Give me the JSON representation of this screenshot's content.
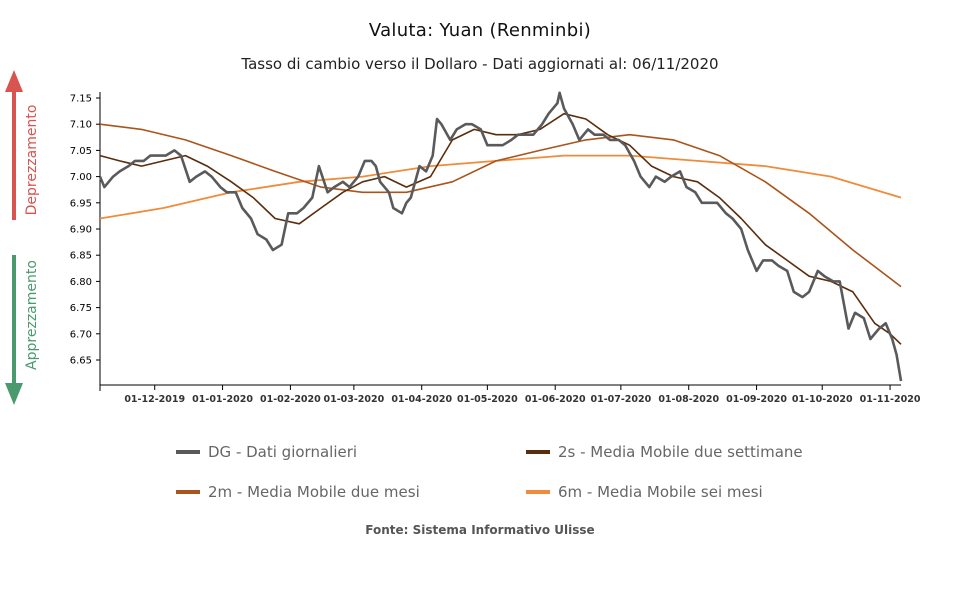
{
  "chart_data": {
    "type": "line",
    "title": "Valuta: Yuan (Renminbi)",
    "subtitle": "Tasso di cambio verso il Dollaro - Dati aggiornati al: 06/11/2020",
    "source": "Fonte: Sistema Informativo Ulisse",
    "side_labels": {
      "top": "Deprezzamento",
      "bottom": "Apprezzamento"
    },
    "side_colors": {
      "top": "#d9534f",
      "bottom": "#4a9a6e"
    },
    "x_range": [
      "2019-11-06",
      "2020-11-06"
    ],
    "x_ticks": [
      {
        "date": "2019-12-01",
        "label": "01-12-2019"
      },
      {
        "date": "2020-01-01",
        "label": "01-01-2020"
      },
      {
        "date": "2020-02-01",
        "label": "01-02-2020"
      },
      {
        "date": "2020-03-01",
        "label": "01-03-2020"
      },
      {
        "date": "2020-04-01",
        "label": "01-04-2020"
      },
      {
        "date": "2020-05-01",
        "label": "01-05-2020"
      },
      {
        "date": "2020-06-01",
        "label": "01-06-2020"
      },
      {
        "date": "2020-07-01",
        "label": "01-07-2020"
      },
      {
        "date": "2020-08-01",
        "label": "01-08-2020"
      },
      {
        "date": "2020-09-01",
        "label": "01-09-2020"
      },
      {
        "date": "2020-10-01",
        "label": "01-10-2020"
      },
      {
        "date": "2020-11-01",
        "label": "01-11-2020"
      }
    ],
    "ylim": [
      6.6,
      7.17
    ],
    "y_ticks": [
      {
        "value": 7.15,
        "label": "7.15"
      },
      {
        "value": 7.1,
        "label": "7.10"
      },
      {
        "value": 7.05,
        "label": "7.05"
      },
      {
        "value": 7.0,
        "label": "7.00"
      },
      {
        "value": 6.95,
        "label": "6.95"
      },
      {
        "value": 6.9,
        "label": "6.90"
      },
      {
        "value": 6.85,
        "label": "6.85"
      },
      {
        "value": 6.8,
        "label": "6.80"
      },
      {
        "value": 6.75,
        "label": "6.75"
      },
      {
        "value": 6.7,
        "label": "6.70"
      },
      {
        "value": 6.65,
        "label": "6.65"
      }
    ],
    "grid": false,
    "legend_position": "bottom",
    "series": [
      {
        "name": "DG - Dati giornalieri",
        "color": "#5a5a5a",
        "points": [
          [
            "2019-11-06",
            7.0
          ],
          [
            "2019-11-08",
            6.98
          ],
          [
            "2019-11-12",
            7.0
          ],
          [
            "2019-11-15",
            7.01
          ],
          [
            "2019-11-19",
            7.02
          ],
          [
            "2019-11-22",
            7.03
          ],
          [
            "2019-11-26",
            7.03
          ],
          [
            "2019-11-29",
            7.04
          ],
          [
            "2019-12-03",
            7.04
          ],
          [
            "2019-12-06",
            7.04
          ],
          [
            "2019-12-10",
            7.05
          ],
          [
            "2019-12-13",
            7.04
          ],
          [
            "2019-12-17",
            6.99
          ],
          [
            "2019-12-20",
            7.0
          ],
          [
            "2019-12-24",
            7.01
          ],
          [
            "2019-12-27",
            7.0
          ],
          [
            "2019-12-31",
            6.98
          ],
          [
            "2020-01-03",
            6.97
          ],
          [
            "2020-01-07",
            6.97
          ],
          [
            "2020-01-10",
            6.94
          ],
          [
            "2020-01-14",
            6.92
          ],
          [
            "2020-01-17",
            6.89
          ],
          [
            "2020-01-21",
            6.88
          ],
          [
            "2020-01-24",
            6.86
          ],
          [
            "2020-01-28",
            6.87
          ],
          [
            "2020-01-31",
            6.93
          ],
          [
            "2020-02-04",
            6.93
          ],
          [
            "2020-02-07",
            6.94
          ],
          [
            "2020-02-11",
            6.96
          ],
          [
            "2020-02-14",
            7.02
          ],
          [
            "2020-02-18",
            6.97
          ],
          [
            "2020-02-21",
            6.98
          ],
          [
            "2020-02-25",
            6.99
          ],
          [
            "2020-02-28",
            6.98
          ],
          [
            "2020-03-03",
            7.0
          ],
          [
            "2020-03-06",
            7.03
          ],
          [
            "2020-03-09",
            7.03
          ],
          [
            "2020-03-11",
            7.02
          ],
          [
            "2020-03-13",
            6.99
          ],
          [
            "2020-03-17",
            6.97
          ],
          [
            "2020-03-19",
            6.94
          ],
          [
            "2020-03-23",
            6.93
          ],
          [
            "2020-03-25",
            6.95
          ],
          [
            "2020-03-27",
            6.96
          ],
          [
            "2020-03-31",
            7.02
          ],
          [
            "2020-04-03",
            7.01
          ],
          [
            "2020-04-06",
            7.04
          ],
          [
            "2020-04-08",
            7.11
          ],
          [
            "2020-04-10",
            7.1
          ],
          [
            "2020-04-14",
            7.07
          ],
          [
            "2020-04-17",
            7.09
          ],
          [
            "2020-04-21",
            7.1
          ],
          [
            "2020-04-24",
            7.1
          ],
          [
            "2020-04-28",
            7.09
          ],
          [
            "2020-05-01",
            7.06
          ],
          [
            "2020-05-05",
            7.06
          ],
          [
            "2020-05-08",
            7.06
          ],
          [
            "2020-05-12",
            7.07
          ],
          [
            "2020-05-15",
            7.08
          ],
          [
            "2020-05-19",
            7.08
          ],
          [
            "2020-05-22",
            7.08
          ],
          [
            "2020-05-26",
            7.1
          ],
          [
            "2020-05-29",
            7.12
          ],
          [
            "2020-06-02",
            7.14
          ],
          [
            "2020-06-03",
            7.16
          ],
          [
            "2020-06-05",
            7.13
          ],
          [
            "2020-06-09",
            7.1
          ],
          [
            "2020-06-12",
            7.07
          ],
          [
            "2020-06-16",
            7.09
          ],
          [
            "2020-06-19",
            7.08
          ],
          [
            "2020-06-23",
            7.08
          ],
          [
            "2020-06-26",
            7.07
          ],
          [
            "2020-06-30",
            7.07
          ],
          [
            "2020-07-03",
            7.06
          ],
          [
            "2020-07-07",
            7.03
          ],
          [
            "2020-07-10",
            7.0
          ],
          [
            "2020-07-14",
            6.98
          ],
          [
            "2020-07-17",
            7.0
          ],
          [
            "2020-07-21",
            6.99
          ],
          [
            "2020-07-24",
            7.0
          ],
          [
            "2020-07-28",
            7.01
          ],
          [
            "2020-07-31",
            6.98
          ],
          [
            "2020-08-04",
            6.97
          ],
          [
            "2020-08-07",
            6.95
          ],
          [
            "2020-08-11",
            6.95
          ],
          [
            "2020-08-14",
            6.95
          ],
          [
            "2020-08-18",
            6.93
          ],
          [
            "2020-08-21",
            6.92
          ],
          [
            "2020-08-25",
            6.9
          ],
          [
            "2020-08-28",
            6.86
          ],
          [
            "2020-09-01",
            6.82
          ],
          [
            "2020-09-04",
            6.84
          ],
          [
            "2020-09-08",
            6.84
          ],
          [
            "2020-09-11",
            6.83
          ],
          [
            "2020-09-15",
            6.82
          ],
          [
            "2020-09-18",
            6.78
          ],
          [
            "2020-09-22",
            6.77
          ],
          [
            "2020-09-25",
            6.78
          ],
          [
            "2020-09-29",
            6.82
          ],
          [
            "2020-10-02",
            6.81
          ],
          [
            "2020-10-06",
            6.8
          ],
          [
            "2020-10-09",
            6.8
          ],
          [
            "2020-10-13",
            6.71
          ],
          [
            "2020-10-16",
            6.74
          ],
          [
            "2020-10-20",
            6.73
          ],
          [
            "2020-10-23",
            6.69
          ],
          [
            "2020-10-27",
            6.71
          ],
          [
            "2020-10-30",
            6.72
          ],
          [
            "2020-11-02",
            6.69
          ],
          [
            "2020-11-04",
            6.66
          ],
          [
            "2020-11-06",
            6.61
          ]
        ]
      },
      {
        "name": "2s - Media Mobile due settimane",
        "color": "#5a2d0c",
        "points": [
          [
            "2019-11-06",
            7.04
          ],
          [
            "2019-11-15",
            7.03
          ],
          [
            "2019-11-25",
            7.02
          ],
          [
            "2019-12-05",
            7.03
          ],
          [
            "2019-12-15",
            7.04
          ],
          [
            "2019-12-25",
            7.02
          ],
          [
            "2020-01-05",
            6.99
          ],
          [
            "2020-01-15",
            6.96
          ],
          [
            "2020-01-25",
            6.92
          ],
          [
            "2020-02-05",
            6.91
          ],
          [
            "2020-02-15",
            6.94
          ],
          [
            "2020-02-25",
            6.97
          ],
          [
            "2020-03-05",
            6.99
          ],
          [
            "2020-03-15",
            7.0
          ],
          [
            "2020-03-25",
            6.98
          ],
          [
            "2020-04-05",
            7.0
          ],
          [
            "2020-04-15",
            7.07
          ],
          [
            "2020-04-25",
            7.09
          ],
          [
            "2020-05-05",
            7.08
          ],
          [
            "2020-05-15",
            7.08
          ],
          [
            "2020-05-25",
            7.09
          ],
          [
            "2020-06-05",
            7.12
          ],
          [
            "2020-06-15",
            7.11
          ],
          [
            "2020-06-25",
            7.08
          ],
          [
            "2020-07-05",
            7.06
          ],
          [
            "2020-07-15",
            7.02
          ],
          [
            "2020-07-25",
            7.0
          ],
          [
            "2020-08-05",
            6.99
          ],
          [
            "2020-08-15",
            6.96
          ],
          [
            "2020-08-25",
            6.92
          ],
          [
            "2020-09-05",
            6.87
          ],
          [
            "2020-09-15",
            6.84
          ],
          [
            "2020-09-25",
            6.81
          ],
          [
            "2020-10-05",
            6.8
          ],
          [
            "2020-10-15",
            6.78
          ],
          [
            "2020-10-25",
            6.72
          ],
          [
            "2020-11-01",
            6.7
          ],
          [
            "2020-11-06",
            6.68
          ]
        ]
      },
      {
        "name": "2m - Media Mobile due mesi",
        "color": "#a9541b",
        "points": [
          [
            "2019-11-06",
            7.1
          ],
          [
            "2019-11-25",
            7.09
          ],
          [
            "2019-12-15",
            7.07
          ],
          [
            "2020-01-05",
            7.04
          ],
          [
            "2020-01-25",
            7.01
          ],
          [
            "2020-02-15",
            6.98
          ],
          [
            "2020-03-05",
            6.97
          ],
          [
            "2020-03-25",
            6.97
          ],
          [
            "2020-04-15",
            6.99
          ],
          [
            "2020-05-05",
            7.03
          ],
          [
            "2020-05-25",
            7.05
          ],
          [
            "2020-06-15",
            7.07
          ],
          [
            "2020-07-05",
            7.08
          ],
          [
            "2020-07-25",
            7.07
          ],
          [
            "2020-08-15",
            7.04
          ],
          [
            "2020-09-05",
            6.99
          ],
          [
            "2020-09-25",
            6.93
          ],
          [
            "2020-10-15",
            6.86
          ],
          [
            "2020-11-06",
            6.79
          ]
        ]
      },
      {
        "name": "6m - Media Mobile sei mesi",
        "color": "#f08b3a",
        "points": [
          [
            "2019-11-06",
            6.92
          ],
          [
            "2019-12-05",
            6.94
          ],
          [
            "2020-01-05",
            6.97
          ],
          [
            "2020-02-05",
            6.99
          ],
          [
            "2020-03-05",
            7.0
          ],
          [
            "2020-04-05",
            7.02
          ],
          [
            "2020-05-05",
            7.03
          ],
          [
            "2020-06-05",
            7.04
          ],
          [
            "2020-07-05",
            7.04
          ],
          [
            "2020-08-05",
            7.03
          ],
          [
            "2020-09-05",
            7.02
          ],
          [
            "2020-10-05",
            7.0
          ],
          [
            "2020-11-06",
            6.96
          ]
        ]
      }
    ]
  }
}
